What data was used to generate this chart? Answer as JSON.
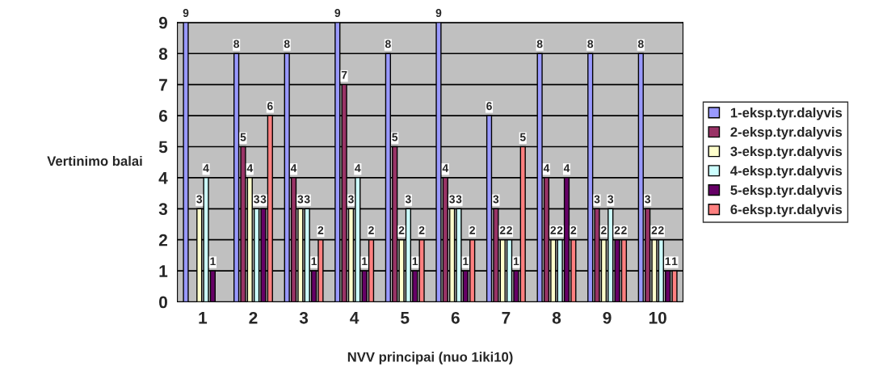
{
  "chart_data": {
    "type": "bar",
    "xlabel": "NVV principai (nuo 1iki10)",
    "ylabel": "Vertinimo balai",
    "categories": [
      "1",
      "2",
      "3",
      "4",
      "5",
      "6",
      "7",
      "8",
      "9",
      "10"
    ],
    "series": [
      {
        "name": "1-eksp.tyr.dalyvis",
        "color": "#9999ff",
        "values": [
          9,
          8,
          8,
          9,
          8,
          9,
          6,
          8,
          8,
          8
        ]
      },
      {
        "name": "2-eksp.tyr.dalyvis",
        "color": "#993366",
        "values": [
          null,
          5,
          4,
          7,
          5,
          4,
          3,
          4,
          3,
          3
        ]
      },
      {
        "name": "3-eksp.tyr.dalyvis",
        "color": "#ffffcc",
        "values": [
          3,
          4,
          3,
          3,
          2,
          3,
          2,
          2,
          2,
          2
        ]
      },
      {
        "name": "4-eksp.tyr.dalyvis",
        "color": "#ccffff",
        "values": [
          4,
          3,
          3,
          4,
          3,
          3,
          2,
          2,
          3,
          2
        ]
      },
      {
        "name": "5-eksp.tyr.dalyvis",
        "color": "#660066",
        "values": [
          1,
          3,
          1,
          1,
          1,
          1,
          1,
          4,
          2,
          1
        ]
      },
      {
        "name": "6-eksp.tyr.dalyvis",
        "color": "#ff8080",
        "values": [
          null,
          6,
          2,
          2,
          2,
          2,
          5,
          2,
          2,
          1
        ]
      }
    ],
    "ylim": [
      0,
      9
    ],
    "yticks": [
      0,
      1,
      2,
      3,
      4,
      5,
      6,
      7,
      8,
      9
    ],
    "grid": "y",
    "legend": "right",
    "data_labels": true
  }
}
